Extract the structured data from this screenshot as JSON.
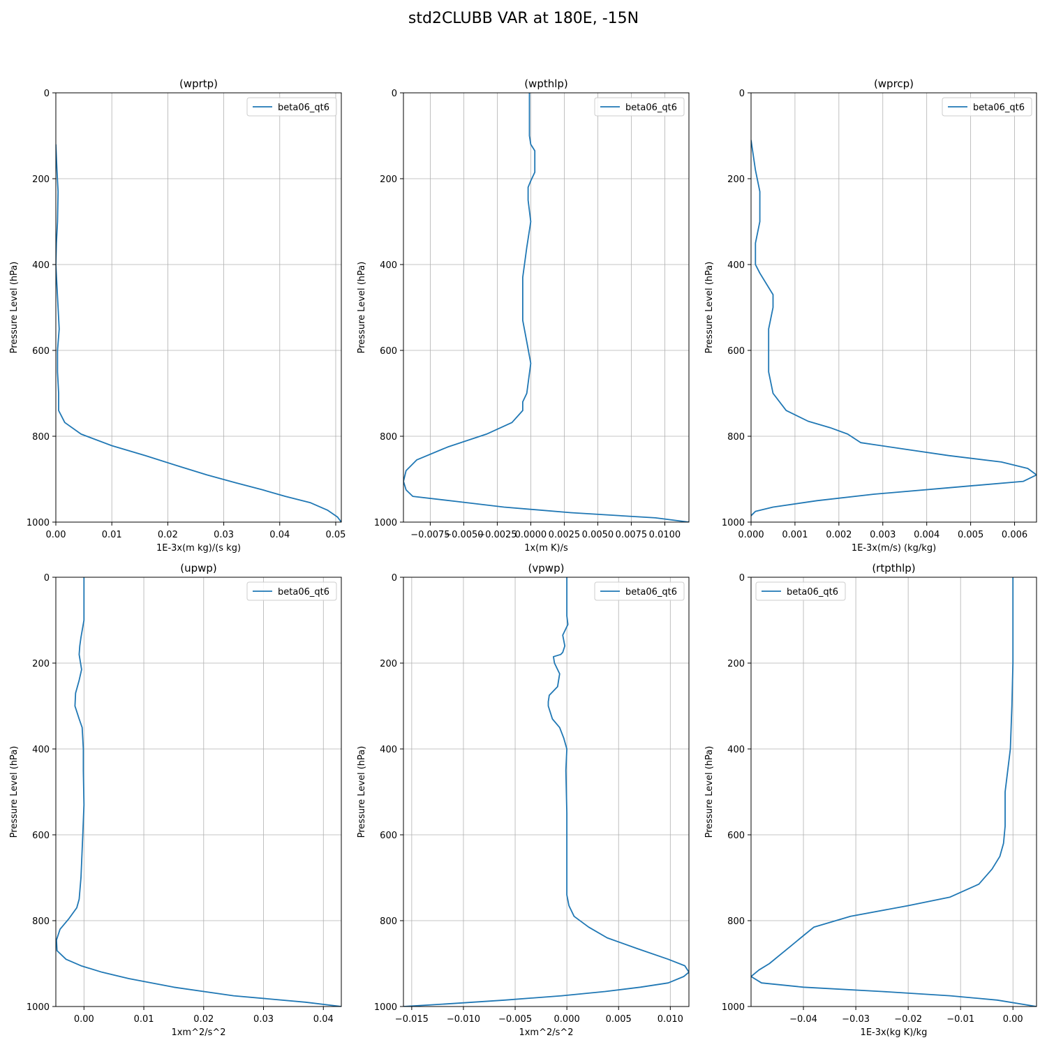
{
  "figure": {
    "title": "std2CLUBB VAR at 180E, -15N"
  },
  "chart_data": [
    {
      "type": "line",
      "title": "(wprtp)",
      "xlabel": "1E-3x(m kg)/(s kg)",
      "ylabel": "Pressure Level (hPa)",
      "xlim": [
        0.0,
        0.051
      ],
      "ylim": [
        1000,
        0
      ],
      "xticks": [
        0.0,
        0.01,
        0.02,
        0.03,
        0.04,
        0.05
      ],
      "xtick_labels": [
        "0.00",
        "0.01",
        "0.02",
        "0.03",
        "0.04",
        "0.05"
      ],
      "yticks": [
        0,
        200,
        400,
        600,
        800,
        1000
      ],
      "ytick_labels": [
        "0",
        "200",
        "400",
        "600",
        "800",
        "1000"
      ],
      "grid": true,
      "legend": "upper right",
      "series": [
        {
          "name": "beta06_qt6",
          "color": "#1f77b4",
          "x": [
            0.0,
            0.0002,
            0.0004,
            0.0003,
            0.0001,
            0.0,
            0.0002,
            0.0004,
            0.0006,
            0.0003,
            0.0003,
            0.0005,
            0.0005,
            0.0016,
            0.0045,
            0.01,
            0.016,
            0.022,
            0.027,
            0.032,
            0.037,
            0.041,
            0.0455,
            0.0485,
            0.0503,
            0.051
          ],
          "y": [
            120,
            180,
            230,
            300,
            350,
            400,
            450,
            500,
            550,
            600,
            650,
            700,
            740,
            768,
            795,
            822,
            845,
            870,
            890,
            908,
            925,
            940,
            955,
            972,
            988,
            1000
          ]
        }
      ]
    },
    {
      "type": "line",
      "title": "(wpthlp)",
      "xlabel": "1x(m K)/s",
      "ylabel": "Pressure Level (hPa)",
      "xlim": [
        -0.0095,
        0.0118
      ],
      "ylim": [
        1000,
        0
      ],
      "xticks": [
        -0.0075,
        -0.005,
        -0.0025,
        0.0,
        0.0025,
        0.005,
        0.0075,
        0.01
      ],
      "xtick_labels": [
        "−0.0075",
        "−0.0050",
        "−0.0025",
        "0.0000",
        "0.0025",
        "0.0050",
        "0.0075",
        "0.0100"
      ],
      "yticks": [
        0,
        200,
        400,
        600,
        800,
        1000
      ],
      "ytick_labels": [
        "0",
        "200",
        "400",
        "600",
        "800",
        "1000"
      ],
      "grid": true,
      "legend": "upper right",
      "series": [
        {
          "name": "beta06_qt6",
          "color": "#1f77b4",
          "x": [
            -0.0001,
            -0.0001,
            -0.0001,
            0.0,
            0.0003,
            0.0003,
            0.0,
            -0.0002,
            -0.0002,
            0.0,
            -0.0003,
            -0.0006,
            -0.0006,
            -0.0006,
            -0.0003,
            0.0,
            -0.0003,
            -0.0006,
            -0.0006,
            -0.0014,
            -0.0033,
            -0.0062,
            -0.0085,
            -0.0093,
            -0.0095,
            -0.0093,
            -0.0088,
            -0.0055,
            -0.002,
            0.003,
            0.0093,
            0.0118
          ],
          "y": [
            0,
            60,
            100,
            120,
            135,
            185,
            205,
            220,
            250,
            300,
            360,
            430,
            480,
            530,
            580,
            630,
            700,
            720,
            740,
            768,
            795,
            825,
            855,
            880,
            905,
            925,
            940,
            952,
            965,
            978,
            990,
            1000
          ]
        }
      ]
    },
    {
      "type": "line",
      "title": "(wprcp)",
      "xlabel": "1E-3x(m/s) (kg/kg)",
      "ylabel": "Pressure Level (hPa)",
      "xlim": [
        0.0,
        0.0065
      ],
      "ylim": [
        1000,
        0
      ],
      "xticks": [
        0.0,
        0.001,
        0.002,
        0.003,
        0.004,
        0.005,
        0.006
      ],
      "xtick_labels": [
        "0.000",
        "0.001",
        "0.002",
        "0.003",
        "0.004",
        "0.005",
        "0.006"
      ],
      "yticks": [
        0,
        200,
        400,
        600,
        800,
        1000
      ],
      "ytick_labels": [
        "0",
        "200",
        "400",
        "600",
        "800",
        "1000"
      ],
      "grid": true,
      "legend": "upper right",
      "series": [
        {
          "name": "beta06_qt6",
          "color": "#1f77b4",
          "x": [
            0.0,
            0.0001,
            0.0002,
            0.0002,
            0.0001,
            0.0001,
            0.0002,
            0.0005,
            0.0005,
            0.0004,
            0.0004,
            0.0004,
            0.0005,
            0.0008,
            0.0013,
            0.0018,
            0.0022,
            0.0025,
            0.0035,
            0.0045,
            0.0057,
            0.0063,
            0.0065,
            0.0062,
            0.0045,
            0.0028,
            0.0015,
            0.0005,
            0.0001,
            0.0
          ],
          "y": [
            110,
            180,
            230,
            300,
            350,
            400,
            420,
            470,
            500,
            550,
            600,
            650,
            700,
            740,
            765,
            780,
            795,
            815,
            830,
            845,
            860,
            875,
            890,
            905,
            920,
            935,
            950,
            965,
            975,
            985
          ]
        }
      ]
    },
    {
      "type": "line",
      "title": "(upwp)",
      "xlabel": "1xm^2/s^2",
      "ylabel": "Pressure Level (hPa)",
      "xlim": [
        -0.0047,
        0.043
      ],
      "ylim": [
        1000,
        0
      ],
      "xticks": [
        0.0,
        0.01,
        0.02,
        0.03,
        0.04
      ],
      "xtick_labels": [
        "0.00",
        "0.01",
        "0.02",
        "0.03",
        "0.04"
      ],
      "yticks": [
        0,
        200,
        400,
        600,
        800,
        1000
      ],
      "ytick_labels": [
        "0",
        "200",
        "400",
        "600",
        "800",
        "1000"
      ],
      "grid": true,
      "legend": "upper right",
      "series": [
        {
          "name": "beta06_qt6",
          "color": "#1f77b4",
          "x": [
            0.0,
            0.0,
            -0.0005,
            -0.0007,
            -0.0008,
            -0.0004,
            -0.0008,
            -0.0014,
            -0.0015,
            -0.0008,
            -0.0003,
            -0.0001,
            -0.0001,
            0.0,
            -0.0002,
            -0.0005,
            -0.0008,
            -0.0012,
            -0.0025,
            -0.004,
            -0.0046,
            -0.0045,
            -0.003,
            -0.0005,
            0.003,
            0.0075,
            0.015,
            0.025,
            0.037,
            0.043
          ],
          "y": [
            0,
            100,
            140,
            160,
            180,
            215,
            240,
            270,
            300,
            330,
            350,
            400,
            450,
            530,
            600,
            700,
            750,
            770,
            795,
            820,
            845,
            870,
            890,
            905,
            920,
            935,
            955,
            975,
            990,
            1000
          ]
        }
      ]
    },
    {
      "type": "line",
      "title": "(vpwp)",
      "xlabel": "1xm^2/s^2",
      "ylabel": "Pressure Level (hPa)",
      "xlim": [
        -0.0158,
        0.0118
      ],
      "ylim": [
        1000,
        0
      ],
      "xticks": [
        -0.015,
        -0.01,
        -0.005,
        0.0,
        0.005,
        0.01
      ],
      "xtick_labels": [
        "−0.015",
        "−0.010",
        "−0.005",
        "0.000",
        "0.005",
        "0.010"
      ],
      "yticks": [
        0,
        200,
        400,
        600,
        800,
        1000
      ],
      "ytick_labels": [
        "0",
        "200",
        "400",
        "600",
        "800",
        "1000"
      ],
      "grid": true,
      "legend": "upper right",
      "series": [
        {
          "name": "beta06_qt6",
          "color": "#1f77b4",
          "x": [
            0.0,
            0.0,
            0.0001,
            -0.0004,
            -0.0002,
            -0.0004,
            -0.0006,
            -0.0013,
            -0.0012,
            -0.0007,
            -0.0009,
            -0.0017,
            -0.0018,
            -0.0018,
            -0.0014,
            -0.0007,
            -0.0003,
            0.0,
            -0.0001,
            0.0,
            0.0,
            0.0,
            0.0002,
            0.0007,
            0.0021,
            0.0039,
            0.0068,
            0.0098,
            0.0114,
            0.0118,
            0.0113,
            0.0098,
            0.0071,
            0.0037,
            -0.0005,
            -0.006,
            -0.011,
            -0.0158
          ],
          "y": [
            0,
            90,
            110,
            135,
            160,
            175,
            180,
            185,
            200,
            225,
            255,
            275,
            290,
            300,
            330,
            350,
            375,
            400,
            450,
            550,
            650,
            740,
            765,
            790,
            815,
            840,
            865,
            890,
            905,
            920,
            930,
            945,
            955,
            965,
            975,
            985,
            993,
            1000
          ]
        }
      ]
    },
    {
      "type": "line",
      "title": "(rtpthlp)",
      "xlabel": "1E-3x(kg K)/kg",
      "ylabel": "Pressure Level (hPa)",
      "xlim": [
        -0.05,
        0.0045
      ],
      "ylim": [
        1000,
        0
      ],
      "xticks": [
        -0.04,
        -0.03,
        -0.02,
        -0.01,
        0.0
      ],
      "xtick_labels": [
        "−0.04",
        "−0.03",
        "−0.02",
        "−0.01",
        "0.00"
      ],
      "yticks": [
        0,
        200,
        400,
        600,
        800,
        1000
      ],
      "ytick_labels": [
        "0",
        "200",
        "400",
        "600",
        "800",
        "1000"
      ],
      "grid": true,
      "legend": "upper left",
      "series": [
        {
          "name": "beta06_qt6",
          "color": "#1f77b4",
          "x": [
            0.0,
            0.0,
            -0.0002,
            -0.0005,
            -0.0015,
            -0.0015,
            -0.0018,
            -0.0025,
            -0.004,
            -0.0065,
            -0.012,
            -0.02,
            -0.031,
            -0.038,
            -0.04,
            -0.0425,
            -0.0445,
            -0.0465,
            -0.0485,
            -0.05,
            -0.048,
            -0.04,
            -0.025,
            -0.012,
            -0.003,
            0.0045
          ],
          "y": [
            0,
            200,
            300,
            400,
            500,
            580,
            620,
            650,
            680,
            715,
            745,
            765,
            790,
            815,
            835,
            860,
            880,
            900,
            915,
            930,
            945,
            955,
            965,
            975,
            985,
            1000
          ]
        }
      ]
    }
  ]
}
